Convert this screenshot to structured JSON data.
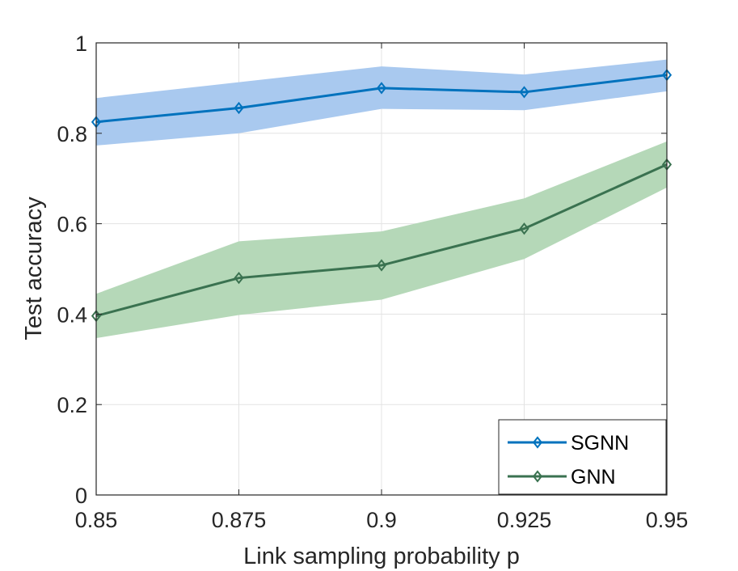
{
  "chart_data": {
    "type": "line",
    "title": "",
    "xlabel": "Link sampling probability p",
    "ylabel": "Test accuracy",
    "x": [
      0.85,
      0.875,
      0.9,
      0.925,
      0.95
    ],
    "xticks": [
      "0.85",
      "0.875",
      "0.9",
      "0.925",
      "0.95"
    ],
    "xlim": [
      0.85,
      0.95
    ],
    "yticks": [
      "0",
      "0.2",
      "0.4",
      "0.6",
      "0.8",
      "1"
    ],
    "ylim": [
      0,
      1
    ],
    "grid": true,
    "legend_position": "bottom-right",
    "series": [
      {
        "name": "SGNN",
        "values": [
          0.825,
          0.856,
          0.9,
          0.891,
          0.929
        ],
        "upper": [
          0.878,
          0.913,
          0.948,
          0.93,
          0.963
        ],
        "lower": [
          0.773,
          0.8,
          0.854,
          0.851,
          0.893
        ],
        "line_color": "#0072bd",
        "band_color": "#a9c9ef",
        "marker": "diamond"
      },
      {
        "name": "GNN",
        "values": [
          0.396,
          0.48,
          0.508,
          0.589,
          0.731
        ],
        "upper": [
          0.445,
          0.561,
          0.583,
          0.656,
          0.782
        ],
        "lower": [
          0.347,
          0.398,
          0.432,
          0.522,
          0.68
        ],
        "line_color": "#3a7250",
        "band_color": "#b5d8b8",
        "marker": "diamond"
      }
    ]
  }
}
